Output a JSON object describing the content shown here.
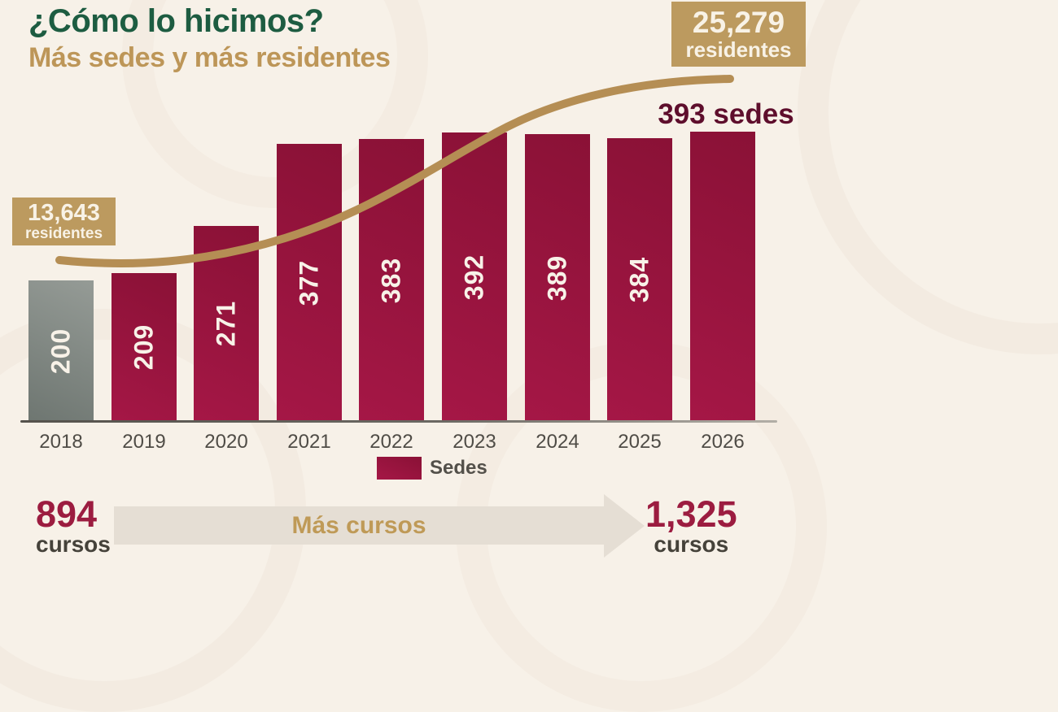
{
  "header": {
    "title": "¿Cómo lo hicimos?",
    "subtitle": "Más sedes y más residentes"
  },
  "badges": {
    "left": {
      "value": "13,643",
      "label": "residentes"
    },
    "right": {
      "value": "25,279",
      "label": "residentes"
    }
  },
  "annotation": {
    "final_sedes": "393 sedes"
  },
  "legend": {
    "sedes_label": "Sedes"
  },
  "footer": {
    "start": {
      "value": "894",
      "label": "cursos"
    },
    "arrow_label": "Más cursos",
    "end": {
      "value": "1,325",
      "label": "cursos"
    }
  },
  "colors": {
    "background": "#f7f1e8",
    "title_green": "#1d5c41",
    "gold": "#bd9658",
    "badge_gold": "#bc9a5f",
    "bar_crimson": "#9a1540",
    "bar_gray": "#828984",
    "annotation_maroon": "#5e0e2c",
    "trend_line": "#b58e54"
  },
  "chart_data": {
    "type": "bar",
    "title": "¿Cómo lo hicimos? Más sedes y más residentes",
    "categories": [
      "2018",
      "2019",
      "2020",
      "2021",
      "2022",
      "2023",
      "2024",
      "2025",
      "2026"
    ],
    "series": [
      {
        "name": "Sedes",
        "type": "bar",
        "values": [
          200,
          209,
          271,
          377,
          383,
          392,
          389,
          384,
          393
        ]
      },
      {
        "name": "Residentes",
        "type": "line",
        "endpoint_labels": [
          "13,643",
          "25,279"
        ],
        "endpoints": [
          13643,
          25279
        ]
      }
    ],
    "bars": [
      {
        "year": "2018",
        "value": 200,
        "style": "gray",
        "show_label": true
      },
      {
        "year": "2019",
        "value": 209,
        "style": "crimson",
        "show_label": true
      },
      {
        "year": "2020",
        "value": 271,
        "style": "crimson",
        "show_label": true
      },
      {
        "year": "2021",
        "value": 377,
        "style": "crimson",
        "show_label": true
      },
      {
        "year": "2022",
        "value": 383,
        "style": "crimson",
        "show_label": true
      },
      {
        "year": "2023",
        "value": 392,
        "style": "crimson",
        "show_label": true
      },
      {
        "year": "2024",
        "value": 389,
        "style": "crimson",
        "show_label": true
      },
      {
        "year": "2025",
        "value": 384,
        "style": "crimson",
        "show_label": true
      },
      {
        "year": "2026",
        "value": 393,
        "style": "crimson",
        "show_label": false
      }
    ],
    "xlabel": "",
    "ylabel": "",
    "ylim": [
      0,
      400
    ],
    "grid": false,
    "legend_position": "bottom"
  }
}
